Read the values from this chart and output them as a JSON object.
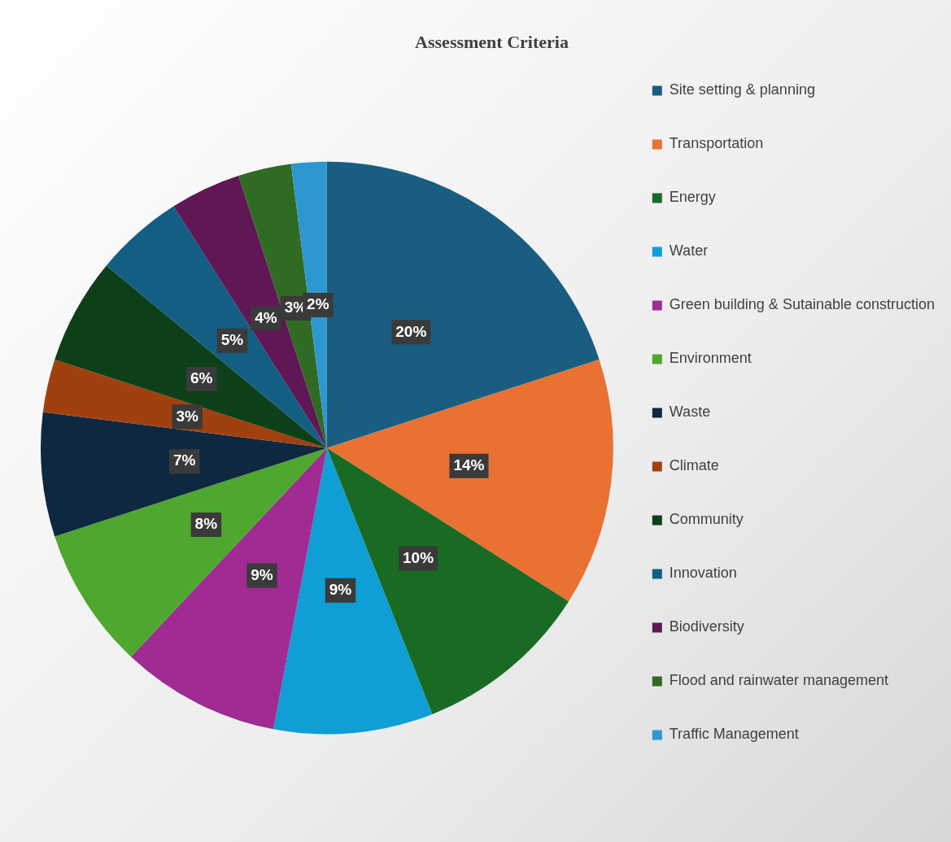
{
  "chart_data": {
    "type": "pie",
    "title": "Assessment Criteria",
    "categories": [
      "Site setting & planning",
      "Transportation",
      "Energy",
      "Water",
      "Green building & Sutainable construction",
      "Environment",
      "Waste",
      "Climate",
      "Community",
      "Innovation",
      "Biodiversity",
      "Flood and rainwater management",
      "Traffic Management"
    ],
    "values": [
      20,
      14,
      10,
      9,
      9,
      8,
      7,
      3,
      6,
      5,
      4,
      3,
      2
    ],
    "value_labels": [
      "20%",
      "14%",
      "10%",
      "9%",
      "9%",
      "8%",
      "7%",
      "3%",
      "6%",
      "5%",
      "4%",
      "3%",
      "2%"
    ],
    "colors": [
      "#195e80",
      "#e97132",
      "#196b24",
      "#0f9ed5",
      "#a02b93",
      "#4ea72e",
      "#0e2841",
      "#a1400f",
      "#0d4018",
      "#135f84",
      "#5f1756",
      "#2f6b22",
      "#2e97cf"
    ],
    "legend": "right"
  }
}
